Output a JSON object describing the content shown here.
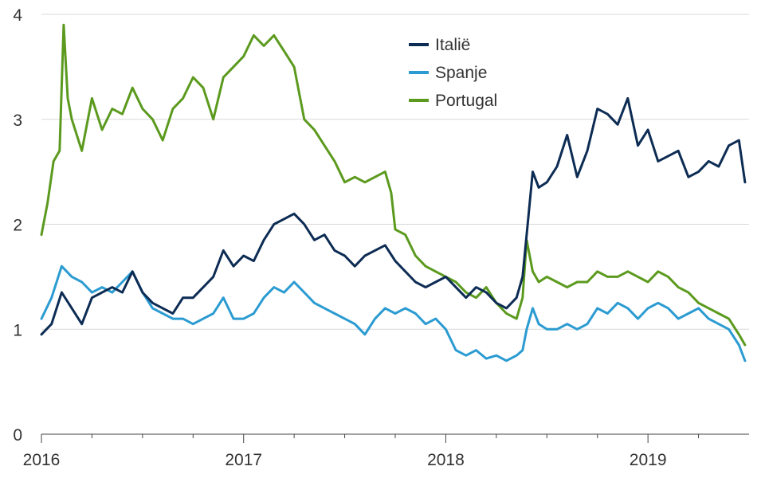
{
  "chart_data": {
    "type": "line",
    "title": "",
    "xlabel": "",
    "ylabel": "",
    "xlim": [
      2016.0,
      2019.5
    ],
    "ylim": [
      0,
      4
    ],
    "y_ticks": [
      0,
      1,
      2,
      3,
      4
    ],
    "x_ticks": [
      2016,
      2017,
      2018,
      2019
    ],
    "x_tick_labels": [
      "2016",
      "2017",
      "2018",
      "2019"
    ],
    "x_minor_ticks": [
      2016.25,
      2016.5,
      2016.75,
      2017.25,
      2017.5,
      2017.75,
      2018.25,
      2018.5,
      2018.75,
      2019.25
    ],
    "grid": "horizontal",
    "legend": "top-center",
    "series": [
      {
        "name": "Italië",
        "color": "#0d2c54",
        "x": [
          2016.0,
          2016.05,
          2016.1,
          2016.15,
          2016.2,
          2016.25,
          2016.3,
          2016.35,
          2016.4,
          2016.45,
          2016.5,
          2016.55,
          2016.6,
          2016.65,
          2016.7,
          2016.75,
          2016.8,
          2016.85,
          2016.9,
          2016.95,
          2017.0,
          2017.05,
          2017.1,
          2017.15,
          2017.2,
          2017.25,
          2017.3,
          2017.35,
          2017.4,
          2017.45,
          2017.5,
          2017.55,
          2017.6,
          2017.65,
          2017.7,
          2017.75,
          2017.8,
          2017.85,
          2017.9,
          2017.95,
          2018.0,
          2018.05,
          2018.1,
          2018.15,
          2018.2,
          2018.25,
          2018.3,
          2018.35,
          2018.38,
          2018.4,
          2018.43,
          2018.46,
          2018.5,
          2018.55,
          2018.6,
          2018.65,
          2018.7,
          2018.75,
          2018.8,
          2018.85,
          2018.9,
          2018.95,
          2019.0,
          2019.05,
          2019.1,
          2019.15,
          2019.2,
          2019.25,
          2019.3,
          2019.35,
          2019.4,
          2019.45,
          2019.48
        ],
        "values": [
          0.95,
          1.05,
          1.35,
          1.2,
          1.05,
          1.3,
          1.35,
          1.4,
          1.35,
          1.55,
          1.35,
          1.25,
          1.2,
          1.15,
          1.3,
          1.3,
          1.4,
          1.5,
          1.75,
          1.6,
          1.7,
          1.65,
          1.85,
          2.0,
          2.05,
          2.1,
          2.0,
          1.85,
          1.9,
          1.75,
          1.7,
          1.6,
          1.7,
          1.75,
          1.8,
          1.65,
          1.55,
          1.45,
          1.4,
          1.45,
          1.5,
          1.4,
          1.3,
          1.4,
          1.35,
          1.25,
          1.2,
          1.3,
          1.5,
          1.9,
          2.5,
          2.35,
          2.4,
          2.55,
          2.85,
          2.45,
          2.7,
          3.1,
          3.05,
          2.95,
          3.2,
          2.75,
          2.9,
          2.6,
          2.65,
          2.7,
          2.45,
          2.5,
          2.6,
          2.55,
          2.75,
          2.8,
          2.4
        ]
      },
      {
        "name": "Spanje",
        "color": "#2b9bd1",
        "x": [
          2016.0,
          2016.05,
          2016.1,
          2016.15,
          2016.2,
          2016.25,
          2016.3,
          2016.35,
          2016.4,
          2016.45,
          2016.5,
          2016.55,
          2016.6,
          2016.65,
          2016.7,
          2016.75,
          2016.8,
          2016.85,
          2016.9,
          2016.95,
          2017.0,
          2017.05,
          2017.1,
          2017.15,
          2017.2,
          2017.25,
          2017.3,
          2017.35,
          2017.4,
          2017.45,
          2017.5,
          2017.55,
          2017.6,
          2017.65,
          2017.7,
          2017.75,
          2017.8,
          2017.85,
          2017.9,
          2017.95,
          2018.0,
          2018.05,
          2018.1,
          2018.15,
          2018.2,
          2018.25,
          2018.3,
          2018.35,
          2018.38,
          2018.4,
          2018.43,
          2018.46,
          2018.5,
          2018.55,
          2018.6,
          2018.65,
          2018.7,
          2018.75,
          2018.8,
          2018.85,
          2018.9,
          2018.95,
          2019.0,
          2019.05,
          2019.1,
          2019.15,
          2019.2,
          2019.25,
          2019.3,
          2019.35,
          2019.4,
          2019.45,
          2019.48
        ],
        "values": [
          1.1,
          1.3,
          1.6,
          1.5,
          1.45,
          1.35,
          1.4,
          1.35,
          1.45,
          1.55,
          1.35,
          1.2,
          1.15,
          1.1,
          1.1,
          1.05,
          1.1,
          1.15,
          1.3,
          1.1,
          1.1,
          1.15,
          1.3,
          1.4,
          1.35,
          1.45,
          1.35,
          1.25,
          1.2,
          1.15,
          1.1,
          1.05,
          0.95,
          1.1,
          1.2,
          1.15,
          1.2,
          1.15,
          1.05,
          1.1,
          1.0,
          0.8,
          0.75,
          0.8,
          0.72,
          0.75,
          0.7,
          0.75,
          0.8,
          1.0,
          1.2,
          1.05,
          1.0,
          1.0,
          1.05,
          1.0,
          1.05,
          1.2,
          1.15,
          1.25,
          1.2,
          1.1,
          1.2,
          1.25,
          1.2,
          1.1,
          1.15,
          1.2,
          1.1,
          1.05,
          1.0,
          0.85,
          0.7
        ]
      },
      {
        "name": "Portugal",
        "color": "#5b9a1e",
        "x": [
          2016.0,
          2016.03,
          2016.06,
          2016.09,
          2016.11,
          2016.13,
          2016.15,
          2016.2,
          2016.25,
          2016.3,
          2016.35,
          2016.4,
          2016.45,
          2016.5,
          2016.55,
          2016.6,
          2016.65,
          2016.7,
          2016.75,
          2016.8,
          2016.85,
          2016.9,
          2016.95,
          2017.0,
          2017.05,
          2017.1,
          2017.15,
          2017.2,
          2017.25,
          2017.3,
          2017.35,
          2017.4,
          2017.45,
          2017.5,
          2017.55,
          2017.6,
          2017.65,
          2017.7,
          2017.73,
          2017.75,
          2017.8,
          2017.85,
          2017.9,
          2017.95,
          2018.0,
          2018.05,
          2018.1,
          2018.15,
          2018.2,
          2018.25,
          2018.3,
          2018.35,
          2018.38,
          2018.4,
          2018.43,
          2018.46,
          2018.5,
          2018.55,
          2018.6,
          2018.65,
          2018.7,
          2018.75,
          2018.8,
          2018.85,
          2018.9,
          2018.95,
          2019.0,
          2019.05,
          2019.1,
          2019.15,
          2019.2,
          2019.25,
          2019.3,
          2019.35,
          2019.4,
          2019.45,
          2019.48
        ],
        "values": [
          1.9,
          2.2,
          2.6,
          2.7,
          3.9,
          3.2,
          3.0,
          2.7,
          3.2,
          2.9,
          3.1,
          3.05,
          3.3,
          3.1,
          3.0,
          2.8,
          3.1,
          3.2,
          3.4,
          3.3,
          3.0,
          3.4,
          3.5,
          3.6,
          3.8,
          3.7,
          3.8,
          3.65,
          3.5,
          3.0,
          2.9,
          2.75,
          2.6,
          2.4,
          2.45,
          2.4,
          2.45,
          2.5,
          2.3,
          1.95,
          1.9,
          1.7,
          1.6,
          1.55,
          1.5,
          1.45,
          1.35,
          1.3,
          1.4,
          1.25,
          1.15,
          1.1,
          1.3,
          1.85,
          1.55,
          1.45,
          1.5,
          1.45,
          1.4,
          1.45,
          1.45,
          1.55,
          1.5,
          1.5,
          1.55,
          1.5,
          1.45,
          1.55,
          1.5,
          1.4,
          1.35,
          1.25,
          1.2,
          1.15,
          1.1,
          0.95,
          0.85
        ]
      }
    ]
  }
}
